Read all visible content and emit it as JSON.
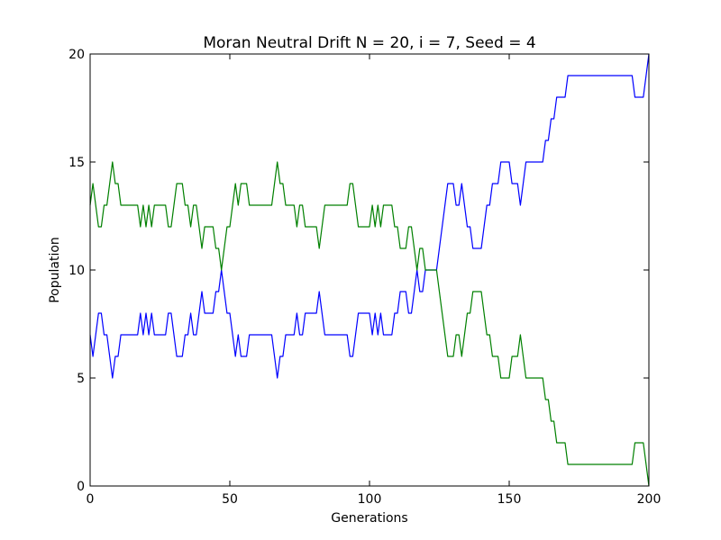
{
  "chart_data": {
    "type": "line",
    "title": "Moran Neutral Drift N = 20, i = 7, Seed = 4",
    "xlabel": "Generations",
    "ylabel": "Population",
    "xlim": [
      0,
      200
    ],
    "ylim": [
      0,
      20
    ],
    "xticks": [
      0,
      50,
      100,
      150,
      200
    ],
    "yticks": [
      0,
      5,
      10,
      15,
      20
    ],
    "grid": false,
    "legend": "none",
    "x": [
      0,
      1,
      2,
      3,
      4,
      5,
      6,
      7,
      8,
      9,
      10,
      11,
      12,
      13,
      14,
      15,
      16,
      17,
      18,
      19,
      20,
      21,
      22,
      23,
      24,
      25,
      26,
      27,
      28,
      29,
      30,
      31,
      32,
      33,
      34,
      35,
      36,
      37,
      38,
      39,
      40,
      41,
      42,
      43,
      44,
      45,
      46,
      47,
      48,
      49,
      50,
      51,
      52,
      53,
      54,
      55,
      56,
      57,
      58,
      59,
      60,
      61,
      62,
      63,
      64,
      65,
      66,
      67,
      68,
      69,
      70,
      71,
      72,
      73,
      74,
      75,
      76,
      77,
      78,
      79,
      80,
      81,
      82,
      83,
      84,
      85,
      86,
      87,
      88,
      89,
      90,
      91,
      92,
      93,
      94,
      95,
      96,
      97,
      98,
      99,
      100,
      101,
      102,
      103,
      104,
      105,
      106,
      107,
      108,
      109,
      110,
      111,
      112,
      113,
      114,
      115,
      116,
      117,
      118,
      119,
      120,
      121,
      122,
      123,
      124,
      125,
      126,
      127,
      128,
      129,
      130,
      131,
      132,
      133,
      134,
      135,
      136,
      137,
      138,
      139,
      140,
      141,
      142,
      143,
      144,
      145,
      146,
      147,
      148,
      149,
      150,
      151,
      152,
      153,
      154,
      155,
      156,
      157,
      158,
      159,
      160,
      161,
      162,
      163,
      164,
      165,
      166,
      167,
      168,
      169,
      170,
      171,
      172,
      173,
      174,
      175,
      176,
      177,
      178,
      179,
      180,
      181,
      182,
      183,
      184,
      185,
      186,
      187,
      188,
      189,
      190,
      191,
      192,
      193,
      194,
      195,
      196,
      197,
      198,
      199,
      200
    ],
    "series": [
      {
        "color": "#0000ff",
        "values": [
          7,
          6,
          7,
          8,
          8,
          7,
          7,
          6,
          5,
          6,
          6,
          7,
          7,
          7,
          7,
          7,
          7,
          7,
          8,
          7,
          8,
          7,
          8,
          7,
          7,
          7,
          7,
          7,
          8,
          8,
          7,
          6,
          6,
          6,
          7,
          7,
          8,
          7,
          7,
          8,
          9,
          8,
          8,
          8,
          8,
          9,
          9,
          10,
          9,
          8,
          8,
          7,
          6,
          7,
          6,
          6,
          6,
          7,
          7,
          7,
          7,
          7,
          7,
          7,
          7,
          7,
          6,
          5,
          6,
          6,
          7,
          7,
          7,
          7,
          8,
          7,
          7,
          8,
          8,
          8,
          8,
          8,
          9,
          8,
          7,
          7,
          7,
          7,
          7,
          7,
          7,
          7,
          7,
          6,
          6,
          7,
          8,
          8,
          8,
          8,
          8,
          7,
          8,
          7,
          8,
          7,
          7,
          7,
          7,
          8,
          8,
          9,
          9,
          9,
          8,
          8,
          9,
          10,
          9,
          9,
          10,
          10,
          10,
          10,
          10,
          11,
          12,
          13,
          14,
          14,
          14,
          13,
          13,
          14,
          13,
          12,
          12,
          11,
          11,
          11,
          11,
          12,
          13,
          13,
          14,
          14,
          14,
          15,
          15,
          15,
          15,
          14,
          14,
          14,
          13,
          14,
          15,
          15,
          15,
          15,
          15,
          15,
          15,
          16,
          16,
          17,
          17,
          18,
          18,
          18,
          18,
          19,
          19,
          19,
          19,
          19,
          19,
          19,
          19,
          19,
          19,
          19,
          19,
          19,
          19,
          19,
          19,
          19,
          19,
          19,
          19,
          19,
          19,
          19,
          19,
          18,
          18,
          18,
          18,
          19,
          20
        ]
      },
      {
        "color": "#008000",
        "values": [
          13,
          14,
          13,
          12,
          12,
          13,
          13,
          14,
          15,
          14,
          14,
          13,
          13,
          13,
          13,
          13,
          13,
          13,
          12,
          13,
          12,
          13,
          12,
          13,
          13,
          13,
          13,
          13,
          12,
          12,
          13,
          14,
          14,
          14,
          13,
          13,
          12,
          13,
          13,
          12,
          11,
          12,
          12,
          12,
          12,
          11,
          11,
          10,
          11,
          12,
          12,
          13,
          14,
          13,
          14,
          14,
          14,
          13,
          13,
          13,
          13,
          13,
          13,
          13,
          13,
          13,
          14,
          15,
          14,
          14,
          13,
          13,
          13,
          13,
          12,
          13,
          13,
          12,
          12,
          12,
          12,
          12,
          11,
          12,
          13,
          13,
          13,
          13,
          13,
          13,
          13,
          13,
          13,
          14,
          14,
          13,
          12,
          12,
          12,
          12,
          12,
          13,
          12,
          13,
          12,
          13,
          13,
          13,
          13,
          12,
          12,
          11,
          11,
          11,
          12,
          12,
          11,
          10,
          11,
          11,
          10,
          10,
          10,
          10,
          10,
          9,
          8,
          7,
          6,
          6,
          6,
          7,
          7,
          6,
          7,
          8,
          8,
          9,
          9,
          9,
          9,
          8,
          7,
          7,
          6,
          6,
          6,
          5,
          5,
          5,
          5,
          6,
          6,
          6,
          7,
          6,
          5,
          5,
          5,
          5,
          5,
          5,
          5,
          4,
          4,
          3,
          3,
          2,
          2,
          2,
          2,
          1,
          1,
          1,
          1,
          1,
          1,
          1,
          1,
          1,
          1,
          1,
          1,
          1,
          1,
          1,
          1,
          1,
          1,
          1,
          1,
          1,
          1,
          1,
          1,
          2,
          2,
          2,
          2,
          1,
          0
        ]
      }
    ]
  }
}
